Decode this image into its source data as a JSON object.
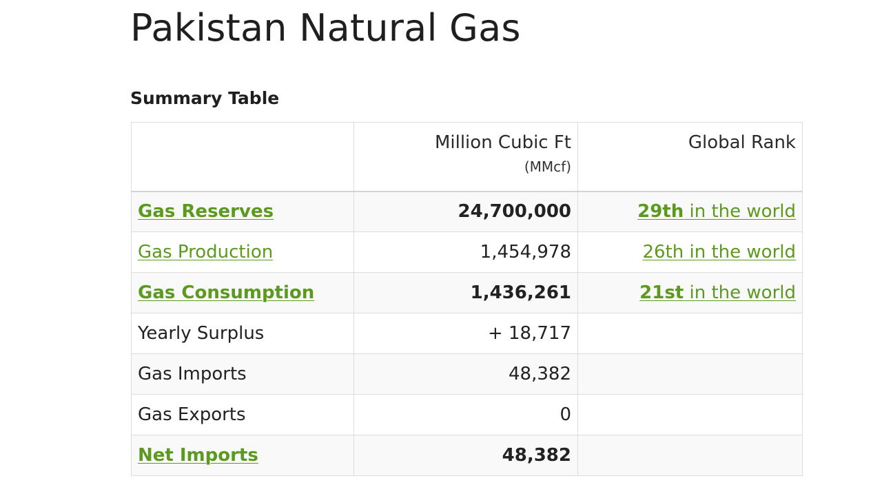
{
  "title": "Pakistan Natural Gas",
  "section_heading": "Summary Table",
  "table": {
    "headers": {
      "col1": "",
      "col2_main": "Million Cubic Ft",
      "col2_sub": "(MMcf)",
      "col3": "Global Rank"
    },
    "rows": [
      {
        "label": "Gas Reserves",
        "value": "24,700,000",
        "rank_num": "29th",
        "rank_suffix": " in the world"
      },
      {
        "label": "Gas Production",
        "value": "1,454,978",
        "rank_num": "26th",
        "rank_suffix": " in the world"
      },
      {
        "label": "Gas Consumption",
        "value": "1,436,261",
        "rank_num": "21st",
        "rank_suffix": " in the world"
      },
      {
        "label": "Yearly Surplus",
        "value": "+ 18,717"
      },
      {
        "label": "Gas Imports",
        "value": "48,382"
      },
      {
        "label": "Gas Exports",
        "value": "0"
      },
      {
        "label": "Net Imports",
        "value": "48,382"
      }
    ]
  },
  "colors": {
    "link_green": "#5c9a1f",
    "border": "#dcdcdc",
    "row_stripe": "#f9f9f9"
  }
}
